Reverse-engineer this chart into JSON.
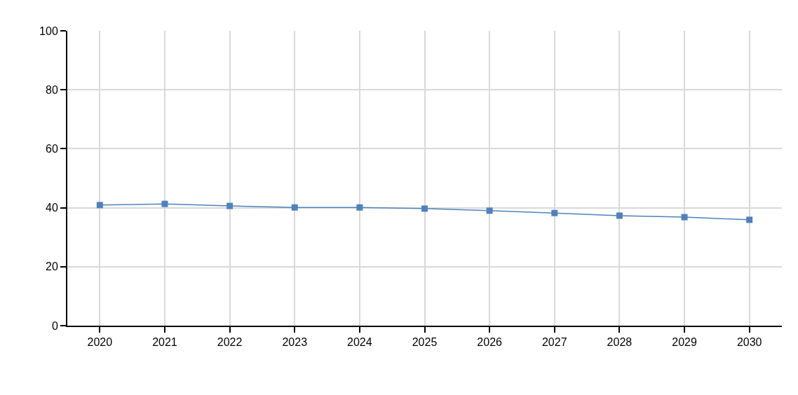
{
  "chart_data": {
    "type": "line",
    "categories": [
      "2020",
      "2021",
      "2022",
      "2023",
      "2024",
      "2025",
      "2026",
      "2027",
      "2028",
      "2029",
      "2030"
    ],
    "series": [
      {
        "color": "#4f81bd",
        "values": [
          40.9,
          41.3,
          40.6,
          40.1,
          40.1,
          39.7,
          39.0,
          38.2,
          37.3,
          36.8,
          35.9
        ]
      }
    ],
    "ylim": [
      0,
      100
    ],
    "yticks": [
      0,
      20,
      40,
      60,
      80,
      100
    ],
    "grid": true,
    "marker": "square",
    "line_style": "solid"
  }
}
